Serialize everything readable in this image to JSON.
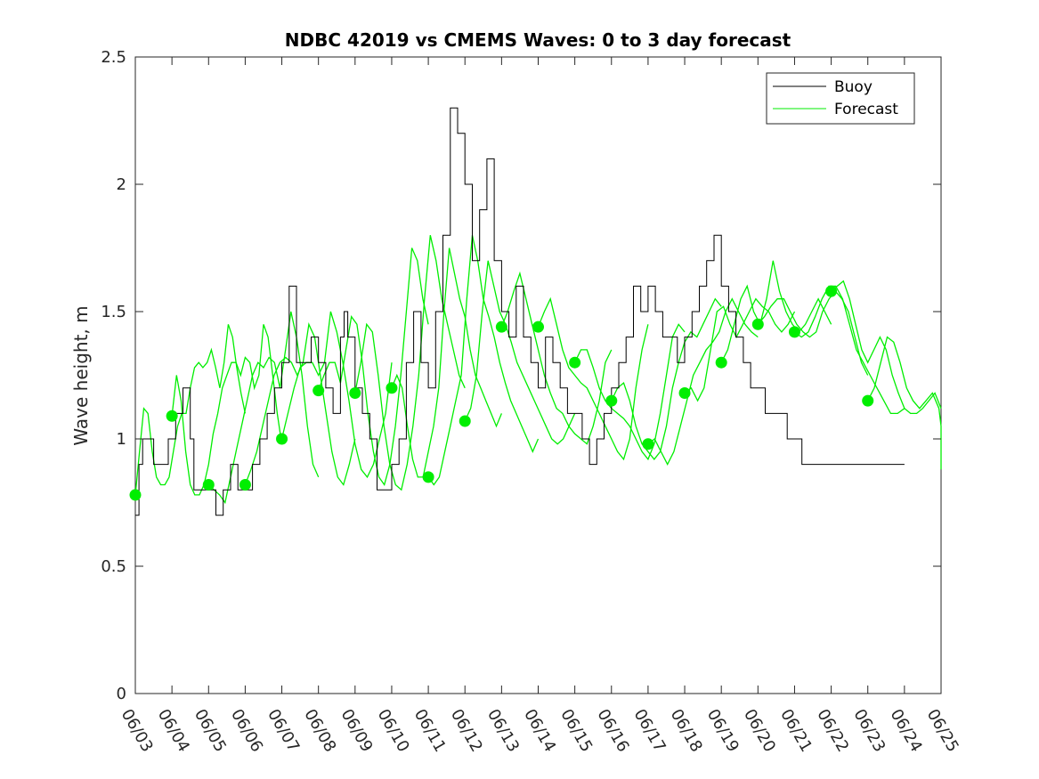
{
  "chart_data": {
    "type": "line",
    "title": "NDBC 42019 vs CMEMS Waves: 0 to 3 day forecast",
    "xlabel": "",
    "ylabel": "Wave height, m",
    "xlim": [
      "06/03",
      "06/25"
    ],
    "ylim": [
      0,
      2.5
    ],
    "x_ticks": [
      "06/03",
      "06/04",
      "06/05",
      "06/06",
      "06/07",
      "06/08",
      "06/09",
      "06/10",
      "06/11",
      "06/12",
      "06/13",
      "06/14",
      "06/15",
      "06/16",
      "06/17",
      "06/18",
      "06/19",
      "06/20",
      "06/21",
      "06/22",
      "06/23",
      "06/24",
      "06/25"
    ],
    "y_ticks": [
      "0",
      "0.5",
      "1",
      "1.5",
      "2",
      "2.5"
    ],
    "grid": false,
    "legend": {
      "position": "top-right",
      "entries": [
        "Buoy",
        "Forecast"
      ]
    },
    "colors": {
      "buoy": "#000000",
      "forecast": "#00ee00",
      "axes": "#262626"
    },
    "buoy": {
      "name": "Buoy",
      "days": [
        0,
        0.1,
        0.2,
        0.3,
        0.5,
        0.7,
        0.9,
        1.0,
        1.1,
        1.3,
        1.5,
        1.6,
        1.8,
        2.0,
        2.2,
        2.4,
        2.6,
        2.8,
        3.0,
        3.2,
        3.4,
        3.6,
        3.8,
        4.0,
        4.2,
        4.4,
        4.6,
        4.8,
        4.9,
        5.0,
        5.2,
        5.4,
        5.6,
        5.7,
        5.8,
        6.0,
        6.2,
        6.4,
        6.6,
        6.8,
        7.0,
        7.2,
        7.4,
        7.6,
        7.8,
        8.0,
        8.2,
        8.4,
        8.6,
        8.8,
        9.0,
        9.2,
        9.4,
        9.6,
        9.8,
        10.0,
        10.2,
        10.4,
        10.6,
        10.8,
        11.0,
        11.2,
        11.4,
        11.6,
        11.8,
        12.0,
        12.2,
        12.4,
        12.6,
        12.8,
        13.0,
        13.2,
        13.4,
        13.6,
        13.8,
        14.0,
        14.2,
        14.4,
        14.6,
        14.8,
        15.0,
        15.2,
        15.4,
        15.6,
        15.8,
        16.0,
        16.2,
        16.4,
        16.6,
        16.8,
        17.0,
        17.2,
        17.4,
        17.6,
        17.8,
        18.0,
        18.2,
        18.4,
        18.6,
        18.8,
        19.0,
        19.2,
        19.4,
        19.6,
        19.8,
        20.0,
        20.2,
        20.4,
        20.6,
        20.8,
        21.0
      ],
      "values": [
        0.7,
        0.9,
        1.0,
        1.0,
        0.9,
        0.9,
        1.0,
        1.0,
        1.1,
        1.2,
        1.0,
        0.8,
        0.8,
        0.8,
        0.7,
        0.8,
        0.9,
        0.8,
        0.8,
        0.9,
        1.0,
        1.1,
        1.2,
        1.3,
        1.6,
        1.3,
        1.3,
        1.4,
        1.4,
        1.3,
        1.2,
        1.1,
        1.4,
        1.5,
        1.4,
        1.2,
        1.1,
        1.0,
        0.8,
        0.8,
        0.9,
        1.0,
        1.3,
        1.5,
        1.3,
        1.2,
        1.5,
        1.8,
        2.3,
        2.2,
        2.0,
        1.7,
        1.9,
        2.1,
        1.7,
        1.5,
        1.4,
        1.6,
        1.4,
        1.3,
        1.2,
        1.4,
        1.3,
        1.2,
        1.1,
        1.1,
        1.0,
        0.9,
        1.0,
        1.1,
        1.2,
        1.3,
        1.4,
        1.6,
        1.5,
        1.6,
        1.5,
        1.4,
        1.4,
        1.3,
        1.4,
        1.5,
        1.6,
        1.7,
        1.8,
        1.6,
        1.5,
        1.4,
        1.3,
        1.2,
        1.2,
        1.1,
        1.1,
        1.1,
        1.0,
        1.0,
        0.9,
        0.9,
        0.9,
        0.9,
        0.9,
        0.9,
        0.9,
        0.9,
        0.9,
        0.9,
        0.9,
        0.9,
        0.9,
        0.9,
        0.9
      ]
    },
    "forecast_series": [
      {
        "start": 0,
        "values": [
          0.78,
          0.95,
          1.12,
          1.1,
          0.95,
          0.85,
          0.82,
          0.82,
          0.85,
          0.95,
          1.05,
          1.1,
          1.1,
          1.2,
          1.28,
          1.3,
          1.28,
          1.3,
          1.35,
          1.28,
          1.2,
          1.3,
          1.45,
          1.4,
          1.28,
          1.18,
          1.1
        ]
      },
      {
        "start": 1,
        "values": [
          1.09,
          1.25,
          1.15,
          0.95,
          0.82,
          0.78,
          0.78,
          0.82,
          0.9,
          1.02,
          1.1,
          1.2,
          1.25,
          1.3,
          1.3,
          1.25,
          1.32,
          1.3,
          1.2,
          1.25,
          1.45,
          1.4,
          1.25,
          1.1,
          0.98
        ]
      },
      {
        "start": 2,
        "values": [
          0.82,
          0.8,
          0.78,
          0.75,
          0.85,
          0.95,
          1.05,
          1.15,
          1.25,
          1.3,
          1.28,
          1.32,
          1.3,
          1.2,
          1.35,
          1.5,
          1.4,
          1.25,
          1.05,
          0.9,
          0.85
        ]
      },
      {
        "start": 3,
        "values": [
          0.82,
          0.88,
          0.95,
          1.05,
          1.15,
          1.25,
          1.3,
          1.32,
          1.3,
          1.25,
          1.3,
          1.45,
          1.4,
          1.25,
          1.1,
          0.95,
          0.85,
          0.82,
          0.9,
          1.0
        ]
      },
      {
        "start": 4,
        "values": [
          1.0,
          1.1,
          1.2,
          1.28,
          1.3,
          1.3,
          1.25,
          1.3,
          1.5,
          1.42,
          1.3,
          1.15,
          0.98,
          0.88,
          0.85,
          0.9,
          1.0,
          1.1,
          1.3
        ]
      },
      {
        "start": 5,
        "values": [
          1.19,
          1.25,
          1.3,
          1.3,
          1.22,
          1.35,
          1.48,
          1.45,
          1.3,
          1.1,
          0.95,
          0.85,
          0.82,
          0.9,
          1.05,
          1.25,
          1.5,
          1.75,
          1.7,
          1.55,
          1.45
        ]
      },
      {
        "start": 6,
        "values": [
          1.18,
          1.3,
          1.45,
          1.42,
          1.25,
          1.05,
          0.9,
          0.82,
          0.8,
          0.9,
          1.05,
          1.25,
          1.55,
          1.8,
          1.7,
          1.55,
          1.45,
          1.35,
          1.25,
          1.2
        ]
      },
      {
        "start": 7,
        "values": [
          1.2,
          1.25,
          1.2,
          1.05,
          0.92,
          0.85,
          0.85,
          0.95,
          1.05,
          1.2,
          1.5,
          1.75,
          1.65,
          1.55,
          1.48,
          1.35,
          1.25,
          1.2,
          1.15,
          1.1,
          1.05,
          1.1
        ]
      },
      {
        "start": 8,
        "values": [
          0.85,
          0.82,
          0.85,
          0.95,
          1.05,
          1.15,
          1.25,
          1.55,
          1.8,
          1.7,
          1.55,
          1.48,
          1.4,
          1.3,
          1.22,
          1.15,
          1.1,
          1.05,
          1.0,
          0.95,
          1.0
        ]
      },
      {
        "start": 9,
        "values": [
          1.07,
          1.12,
          1.25,
          1.5,
          1.7,
          1.6,
          1.5,
          1.45,
          1.38,
          1.3,
          1.25,
          1.2,
          1.15,
          1.1,
          1.05,
          1.0,
          0.98,
          1.0,
          1.05,
          1.1
        ]
      },
      {
        "start": 10,
        "values": [
          1.44,
          1.5,
          1.58,
          1.65,
          1.55,
          1.45,
          1.35,
          1.25,
          1.18,
          1.12,
          1.1,
          1.05,
          1.02,
          1.0,
          0.98,
          1.05,
          1.15,
          1.3,
          1.35
        ]
      },
      {
        "start": 11,
        "values": [
          1.44,
          1.5,
          1.55,
          1.45,
          1.35,
          1.28,
          1.25,
          1.22,
          1.2,
          1.15,
          1.1,
          1.05,
          1.0,
          0.95,
          0.92,
          1.0,
          1.2,
          1.35,
          1.45
        ]
      },
      {
        "start": 12,
        "values": [
          1.3,
          1.35,
          1.35,
          1.28,
          1.2,
          1.15,
          1.12,
          1.1,
          1.08,
          1.05,
          1.0,
          0.95,
          0.92,
          0.98,
          1.1,
          1.25,
          1.4,
          1.45,
          1.42
        ]
      },
      {
        "start": 13,
        "values": [
          1.15,
          1.2,
          1.22,
          1.15,
          1.05,
          0.98,
          0.95,
          0.92,
          0.95,
          1.05,
          1.2,
          1.3,
          1.38,
          1.42,
          1.4,
          1.45,
          1.5,
          1.55,
          1.52
        ]
      },
      {
        "start": 14,
        "values": [
          0.98,
          1.0,
          0.95,
          0.9,
          0.95,
          1.05,
          1.15,
          1.25,
          1.3,
          1.35,
          1.38,
          1.42,
          1.5,
          1.55,
          1.5,
          1.45,
          1.42,
          1.4
        ]
      },
      {
        "start": 15,
        "values": [
          1.18,
          1.2,
          1.15,
          1.2,
          1.35,
          1.5,
          1.52,
          1.45,
          1.4,
          1.45,
          1.5,
          1.55,
          1.52,
          1.5,
          1.45,
          1.42,
          1.45,
          1.5
        ]
      },
      {
        "start": 16,
        "values": [
          1.3,
          1.35,
          1.45,
          1.55,
          1.6,
          1.5,
          1.45,
          1.55,
          1.7,
          1.58,
          1.5,
          1.45,
          1.42,
          1.45,
          1.5,
          1.55,
          1.5,
          1.45
        ]
      },
      {
        "start": 17,
        "values": [
          1.45,
          1.48,
          1.52,
          1.55,
          1.55,
          1.5,
          1.45,
          1.42,
          1.4,
          1.42,
          1.5,
          1.55,
          1.58,
          1.55,
          1.5,
          1.4,
          1.3,
          1.25
        ]
      },
      {
        "start": 18,
        "values": [
          1.42,
          1.4,
          1.42,
          1.48,
          1.55,
          1.6,
          1.6,
          1.55,
          1.45,
          1.35,
          1.3,
          1.25,
          1.2,
          1.15,
          1.1,
          1.1,
          1.12
        ]
      },
      {
        "start": 19,
        "values": [
          1.58,
          1.6,
          1.62,
          1.55,
          1.45,
          1.35,
          1.3,
          1.35,
          1.4,
          1.35,
          1.25,
          1.18,
          1.12,
          1.1,
          1.1,
          1.12,
          1.15,
          1.18,
          1.12
        ]
      },
      {
        "start": 20,
        "values": [
          1.15,
          1.2,
          1.3,
          1.4,
          1.38,
          1.3,
          1.2,
          1.15,
          1.12,
          1.15,
          1.18,
          1.12,
          1.05,
          1.0,
          0.95,
          0.92,
          0.9,
          0.88
        ]
      }
    ],
    "analysis_markers": {
      "name": "Forecast",
      "days": [
        0,
        1,
        2,
        3,
        4,
        5,
        6,
        7,
        8,
        9,
        10,
        11,
        12,
        13,
        14,
        15,
        16,
        17,
        18,
        19,
        20
      ],
      "values": [
        0.78,
        1.09,
        0.82,
        0.82,
        1.0,
        1.19,
        1.18,
        1.2,
        0.85,
        1.07,
        1.44,
        1.44,
        1.3,
        1.15,
        0.98,
        1.18,
        1.3,
        1.45,
        1.42,
        1.58,
        1.15
      ]
    }
  }
}
